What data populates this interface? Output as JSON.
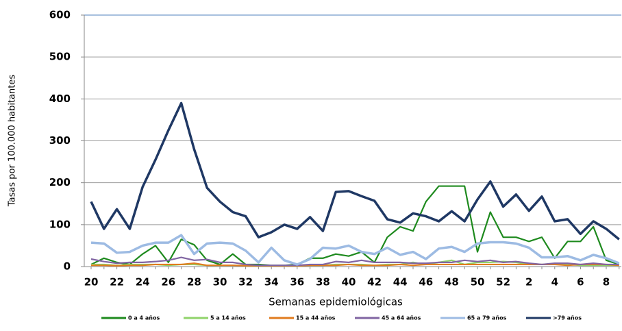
{
  "chart_data": {
    "type": "line",
    "y_label": "Tasas por 100.000 habitantes",
    "x_label": "Semanas epidemiológicas",
    "categories": [
      "20",
      null,
      "22",
      null,
      "24",
      null,
      "26",
      null,
      "28",
      null,
      "30",
      null,
      "32",
      null,
      "34",
      null,
      "36",
      null,
      "38",
      null,
      "40",
      null,
      "42",
      null,
      "44",
      null,
      "46",
      null,
      "48",
      null,
      "50",
      null,
      "52",
      null,
      "2",
      null,
      "4",
      null,
      "6",
      null,
      "8",
      null
    ],
    "ylim": [
      0,
      600
    ],
    "yticks": [
      0,
      100,
      200,
      300,
      400,
      500,
      600
    ],
    "grid": true,
    "series": [
      {
        "name": "0 a 4 años",
        "color": "#1e8a1e",
        "values": [
          5,
          20,
          10,
          5,
          30,
          50,
          10,
          65,
          52,
          15,
          5,
          30,
          5,
          5,
          3,
          3,
          5,
          20,
          20,
          30,
          25,
          35,
          10,
          70,
          95,
          85,
          155,
          192,
          192,
          192,
          35,
          130,
          70,
          70,
          60,
          70,
          20,
          60,
          60,
          95,
          15,
          5
        ]
      },
      {
        "name": "5 a 14 años",
        "color": "#8fd36a",
        "values": [
          5,
          5,
          3,
          5,
          5,
          5,
          3,
          5,
          5,
          3,
          3,
          3,
          2,
          2,
          2,
          2,
          2,
          3,
          3,
          5,
          5,
          5,
          3,
          5,
          5,
          10,
          5,
          10,
          15,
          5,
          10,
          10,
          12,
          10,
          5,
          5,
          5,
          5,
          3,
          3,
          3,
          3
        ]
      },
      {
        "name": "15 a 44 años",
        "color": "#e07b1e",
        "values": [
          3,
          3,
          2,
          3,
          3,
          5,
          5,
          5,
          8,
          3,
          3,
          3,
          2,
          2,
          2,
          2,
          2,
          3,
          3,
          3,
          5,
          3,
          3,
          3,
          5,
          3,
          5,
          5,
          5,
          5,
          5,
          5,
          5,
          5,
          5,
          5,
          5,
          3,
          5,
          5,
          5,
          3
        ]
      },
      {
        "name": "45 a 64 años",
        "color": "#8064a2",
        "values": [
          18,
          12,
          8,
          10,
          10,
          12,
          15,
          22,
          15,
          17,
          10,
          10,
          5,
          3,
          3,
          3,
          3,
          5,
          5,
          12,
          10,
          15,
          10,
          10,
          10,
          8,
          8,
          10,
          10,
          15,
          12,
          15,
          10,
          12,
          8,
          5,
          8,
          8,
          5,
          8,
          5,
          5
        ]
      },
      {
        "name": "65 a 79 años",
        "color": "#9dbbe3",
        "values": [
          57,
          55,
          33,
          35,
          50,
          57,
          57,
          75,
          30,
          55,
          57,
          55,
          38,
          10,
          45,
          15,
          5,
          18,
          45,
          43,
          50,
          35,
          30,
          45,
          28,
          35,
          18,
          43,
          47,
          35,
          55,
          58,
          58,
          55,
          45,
          22,
          22,
          25,
          15,
          28,
          20,
          8
        ]
      },
      {
        "name": ">79 años",
        "color": "#1f3864",
        "values": [
          155,
          90,
          137,
          90,
          190,
          255,
          325,
          390,
          280,
          188,
          155,
          130,
          120,
          70,
          82,
          100,
          90,
          118,
          85,
          178,
          180,
          168,
          157,
          113,
          105,
          127,
          120,
          108,
          132,
          108,
          160,
          203,
          143,
          172,
          133,
          167,
          108,
          113,
          78,
          108,
          90,
          65
        ]
      }
    ]
  }
}
